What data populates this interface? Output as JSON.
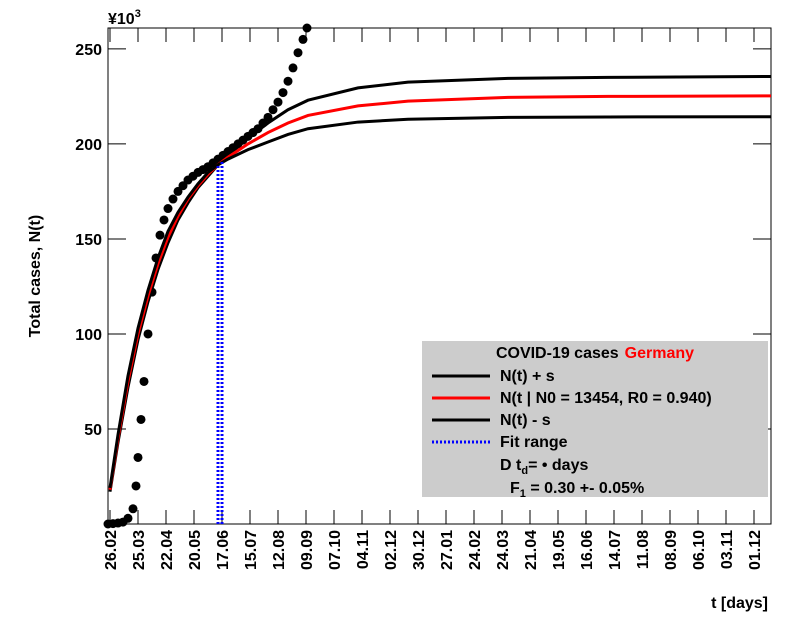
{
  "chart_data": {
    "type": "line",
    "y_multiplier": "¥10",
    "y_multiplier_exponent": "3",
    "x_label": "t [days]",
    "y_label": "Total cases, N(t)",
    "xlim": [
      0,
      663
    ],
    "ylim": [
      0,
      261
    ],
    "xticks": [
      {
        "value": 2,
        "label": "26.02"
      },
      {
        "value": 30,
        "label": "25.03"
      },
      {
        "value": 58,
        "label": "22.04"
      },
      {
        "value": 86,
        "label": "20.05"
      },
      {
        "value": 114,
        "label": "17.06"
      },
      {
        "value": 142,
        "label": "15.07"
      },
      {
        "value": 170,
        "label": "12.08"
      },
      {
        "value": 198,
        "label": "09.09"
      },
      {
        "value": 226,
        "label": "07.10"
      },
      {
        "value": 254,
        "label": "04.11"
      },
      {
        "value": 282,
        "label": "02.12"
      },
      {
        "value": 310,
        "label": "30.12"
      },
      {
        "value": 338,
        "label": "27.01"
      },
      {
        "value": 366,
        "label": "24.02"
      },
      {
        "value": 394,
        "label": "24.03"
      },
      {
        "value": 422,
        "label": "21.04"
      },
      {
        "value": 450,
        "label": "19.05"
      },
      {
        "value": 478,
        "label": "16.06"
      },
      {
        "value": 506,
        "label": "14.07"
      },
      {
        "value": 534,
        "label": "11.08"
      },
      {
        "value": 562,
        "label": "08.09"
      },
      {
        "value": 590,
        "label": "06.10"
      },
      {
        "value": 618,
        "label": "03.11"
      },
      {
        "value": 646,
        "label": "01.12"
      }
    ],
    "yticks": [
      50,
      100,
      150,
      200,
      250
    ],
    "legend_title": "COVID-19 cases",
    "legend_country": "Germany",
    "legend_country_color": "#ff0000",
    "x": [
      2,
      10,
      20,
      30,
      40,
      50,
      60,
      70,
      80,
      90,
      100,
      110,
      120,
      140,
      160,
      180,
      200,
      250,
      300,
      400,
      500,
      663
    ],
    "series": [
      {
        "name": "N(t) + s",
        "color": "#000000",
        "values": [
          17,
          43,
          72,
          97,
          117,
          134,
          148,
          160,
          169,
          177,
          183,
          189,
          194,
          203,
          211,
          218,
          223,
          229.5,
          232.5,
          234.5,
          235,
          235.5
        ]
      },
      {
        "name": "N(t | N0 = 13454, R0 =  0.940)",
        "color": "#ff0000",
        "values": [
          18,
          45,
          75,
          100,
          120,
          137,
          151,
          162,
          171,
          178,
          184,
          189,
          193,
          200,
          206,
          211,
          215,
          220,
          222.5,
          224.5,
          225,
          225.3
        ]
      },
      {
        "name": "N(t) - s",
        "color": "#000000",
        "values": [
          19,
          47,
          78,
          103,
          123,
          140,
          154,
          164,
          172,
          179,
          185,
          189,
          192,
          197,
          201,
          205,
          208,
          211.5,
          213,
          214,
          214.2,
          214.3
        ]
      }
    ],
    "fit_range": {
      "name": "Fit range",
      "color": "#0000ff",
      "x": [
        110,
        114
      ]
    },
    "points": {
      "color": "#000000",
      "x": [
        0,
        5,
        10,
        15,
        20,
        25,
        28,
        30,
        33,
        36,
        40,
        44,
        48,
        52,
        56,
        60,
        65,
        70,
        75,
        80,
        85,
        90,
        95,
        100,
        105,
        110,
        115,
        120,
        125,
        130,
        135,
        140,
        145,
        150,
        155,
        160,
        165,
        170,
        175,
        180,
        185,
        190,
        195,
        199
      ],
      "values": [
        0,
        0.2,
        0.5,
        1,
        3,
        8,
        20,
        35,
        55,
        75,
        100,
        122,
        140,
        152,
        160,
        166,
        171,
        175,
        178,
        181,
        183,
        185,
        186.5,
        188,
        190,
        192,
        194,
        196,
        198,
        200,
        202,
        204,
        206,
        208,
        211,
        214,
        218,
        222,
        227,
        233,
        240,
        248,
        255,
        261
      ]
    },
    "annotations": [
      [
        "D t",
        "d",
        "=  • days"
      ],
      [
        "F",
        "1",
        " =  0.30 +- 0.05%"
      ]
    ]
  }
}
